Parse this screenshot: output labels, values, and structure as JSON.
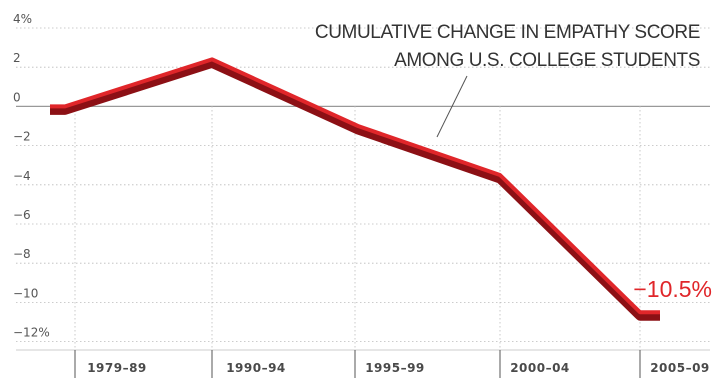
{
  "chart_data": {
    "type": "line",
    "title_lines": [
      "CUMULATIVE CHANGE IN EMPATHY SCORE",
      "AMONG U.S. COLLEGE STUDENTS"
    ],
    "xlabel": "",
    "ylabel": "",
    "ylim": [
      -12,
      4
    ],
    "y_ticks": [
      4,
      2,
      0,
      -2,
      -4,
      -6,
      -8,
      -10,
      -12
    ],
    "y_tick_labels": [
      "4%",
      "2",
      "0",
      "−2",
      "−4",
      "−6",
      "−8",
      "−10",
      "−12%"
    ],
    "categories": [
      "1979–89",
      "1990–94",
      "1995–99",
      "2000–04",
      "2005–09"
    ],
    "grid": true,
    "series": [
      {
        "x": [
          0,
          1,
          2,
          3,
          4
        ],
        "values": [
          0.0,
          2.4,
          -1.0,
          -3.5,
          -10.5
        ]
      }
    ],
    "end_label": "−10.5%",
    "colors": {
      "line_face": "#e0262a",
      "line_shadow": "#8c1015",
      "grid": "#bbbbbb",
      "zero_line": "#999999",
      "text": "#333333"
    }
  }
}
